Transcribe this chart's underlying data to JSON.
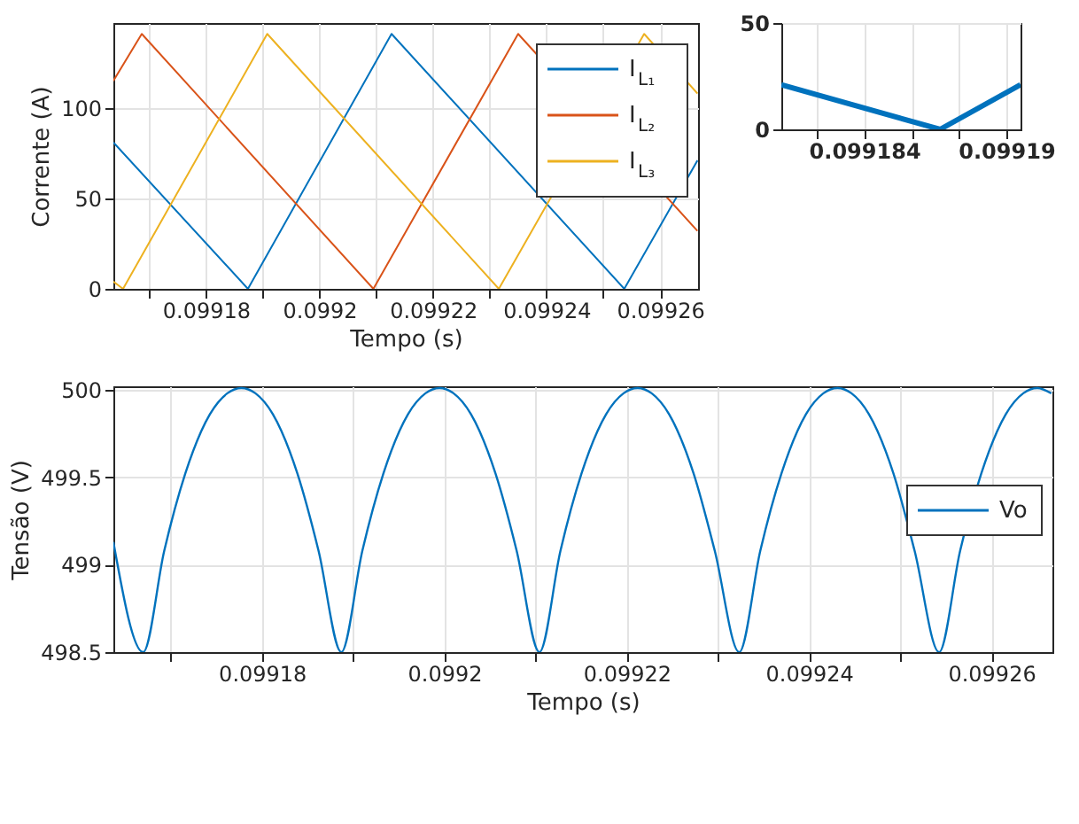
{
  "chart_data": [
    {
      "type": "line",
      "xlabel": "Tempo (s)",
      "ylabel": "Corrente (A)",
      "xlim": [
        0.0991637,
        0.0992667
      ],
      "ylim": [
        0,
        147
      ],
      "xticks": [
        {
          "value": 0.09917,
          "label": null
        },
        0.09918,
        {
          "value": 0.09919,
          "label": null
        },
        0.0992,
        {
          "value": 0.09921,
          "label": null
        },
        0.09922,
        {
          "value": 0.09923,
          "label": null
        },
        0.09924,
        {
          "value": 0.09925,
          "label": null
        },
        0.09926
      ],
      "yticks": [
        0,
        50,
        100
      ],
      "grid": true,
      "legend": "top right",
      "series": [
        {
          "name": "I$_{L₁}$",
          "color": "#0072bd",
          "x": [
            0.0991637,
            0.0991874,
            0.0992127,
            0.0992537,
            0.0992666
          ],
          "values": [
            81,
            0,
            141,
            0,
            71
          ]
        },
        {
          "name": "I$_{L₂}$",
          "color": "#d95319",
          "x": [
            0.0991637,
            0.0991687,
            0.0992095,
            0.099235,
            0.0992666
          ],
          "values": [
            115,
            141,
            0,
            141,
            32
          ]
        },
        {
          "name": "I$_{L₃}$",
          "color": "#edb120",
          "x": [
            0.0991637,
            0.0991654,
            0.0991908,
            0.0992316,
            0.0992572,
            0.0992666
          ],
          "values": [
            4,
            0,
            141,
            0,
            141,
            108
          ]
        }
      ]
    },
    {
      "type": "line",
      "xlim": [
        0.0991805,
        0.0991906
      ],
      "ylim": [
        0,
        50
      ],
      "xticks": [
        {
          "value": 0.099182,
          "label": null
        },
        0.099184,
        {
          "value": 0.099186,
          "label": null
        },
        {
          "value": 0.099188,
          "label": null
        },
        0.09919
      ],
      "yticks": [
        0,
        50
      ],
      "grid": true,
      "series": [
        {
          "color": "#0072bd",
          "x": [
            0.0991805,
            0.0991872,
            0.0991906
          ],
          "values": [
            21,
            0,
            21
          ]
        }
      ]
    },
    {
      "type": "line",
      "xlabel": "Tempo (s)",
      "ylabel": "Tensão (V)",
      "xlim": [
        0.0991637,
        0.0992667
      ],
      "ylim": [
        498.5,
        500.02
      ],
      "xticks": [
        {
          "value": 0.09917,
          "label": null
        },
        0.09918,
        {
          "value": 0.09919,
          "label": null
        },
        0.0992,
        {
          "value": 0.09921,
          "label": null
        },
        0.09922,
        {
          "value": 0.09923,
          "label": null
        },
        0.09924,
        {
          "value": 0.09925,
          "label": null
        },
        0.09926
      ],
      "yticks": [
        498.5,
        499,
        499.5,
        500
      ],
      "grid": true,
      "legend": "top right",
      "series": [
        {
          "name": "Vo",
          "color": "#0072bd",
          "x": [
            0.0991637,
            0.09916697,
            0.09916928,
            0.09917158,
            0.09917428,
            0.0991762,
            0.09917774,
            0.09917928,
            0.0991812,
            0.09918389,
            0.0991862,
            0.0991887,
            0.09919101,
            0.09919331,
            0.09919601,
            0.09919793,
            0.09919947,
            0.09920101,
            0.09920293,
            0.09920562,
            0.09920793,
            0.09921043,
            0.09921274,
            0.09921504,
            0.09921774,
            0.09921966,
            0.0992212,
            0.09922274,
            0.09922466,
            0.09922735,
            0.09922966,
            0.09923235,
            0.09923466,
            0.09923697,
            0.09923966,
            0.09924158,
            0.09924312,
            0.09924466,
            0.09924658,
            0.09924927,
            0.09925158,
            0.09925427,
            0.09925658,
            0.09925889,
            0.09926158,
            0.0992635,
            0.09926504,
            0.09926658
          ],
          "values": [
            499.13,
            498.5,
            499.08,
            499.52,
            499.86,
            499.98,
            500.01,
            499.98,
            499.86,
            499.52,
            499.08,
            498.5,
            499.08,
            499.52,
            499.86,
            499.98,
            500.01,
            499.98,
            499.86,
            499.52,
            499.08,
            498.5,
            499.08,
            499.52,
            499.86,
            499.98,
            500.01,
            499.98,
            499.86,
            499.52,
            499.08,
            498.5,
            499.08,
            499.52,
            499.86,
            499.98,
            500.01,
            499.98,
            499.86,
            499.52,
            499.08,
            498.5,
            499.08,
            499.52,
            499.86,
            499.98,
            500.01,
            499.98
          ]
        }
      ]
    }
  ]
}
